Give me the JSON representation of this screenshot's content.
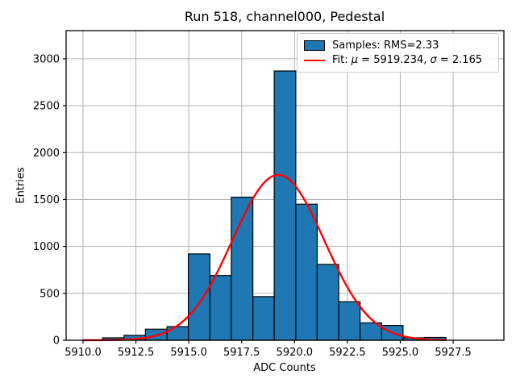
{
  "figure": {
    "title": "Run 518, channel000, Pedestal",
    "xlabel": "ADC Counts",
    "ylabel": "Entries"
  },
  "legend": {
    "samples_label": "Samples: RMS=2.33",
    "fit_prefix": "Fit: ",
    "mu_symbol": "μ",
    "mu_value_text": " = 5919.234, ",
    "sigma_symbol": "σ",
    "sigma_value_text": " = 2.165"
  },
  "chart_data": {
    "type": "bar",
    "subtype": "histogram-with-gaussian-fit",
    "title": "Run 518, channel000, Pedestal",
    "xlabel": "ADC Counts",
    "ylabel": "Entries",
    "xlim": [
      5909.2,
      5929.9
    ],
    "ylim": [
      0,
      3300
    ],
    "grid": true,
    "legend_position": "upper-right",
    "xticks": [
      {
        "value": 5910.0,
        "label": "5910.0"
      },
      {
        "value": 5912.5,
        "label": "5912.5"
      },
      {
        "value": 5915.0,
        "label": "5915.0"
      },
      {
        "value": 5917.5,
        "label": "5917.5"
      },
      {
        "value": 5920.0,
        "label": "5920.0"
      },
      {
        "value": 5922.5,
        "label": "5922.5"
      },
      {
        "value": 5925.0,
        "label": "5925.0"
      },
      {
        "value": 5927.5,
        "label": "5927.5"
      }
    ],
    "yticks": [
      {
        "value": 0,
        "label": "0"
      },
      {
        "value": 500,
        "label": "500"
      },
      {
        "value": 1000,
        "label": "1000"
      },
      {
        "value": 1500,
        "label": "1500"
      },
      {
        "value": 2000,
        "label": "2000"
      },
      {
        "value": 2500,
        "label": "2500"
      },
      {
        "value": 3000,
        "label": "3000"
      }
    ],
    "histogram": {
      "series_name": "Samples: RMS=2.33",
      "rms": 2.33,
      "bin_edges": [
        5910.92,
        5911.94,
        5912.95,
        5913.97,
        5914.98,
        5916.0,
        5917.01,
        5918.03,
        5919.04,
        5920.06,
        5921.07,
        5922.09,
        5923.1,
        5924.12,
        5925.13,
        5926.15,
        5927.16
      ],
      "counts": [
        26,
        52,
        118,
        145,
        920,
        690,
        1525,
        465,
        2870,
        1450,
        808,
        410,
        185,
        158,
        26,
        30
      ]
    },
    "fit": {
      "series_name": "Fit: μ = 5919.234, σ = 2.165",
      "mu": 5919.234,
      "sigma": 2.165,
      "amplitude": 1762,
      "x_start": 5910.0,
      "x_end": 5927.16
    },
    "colors": {
      "bar_fill": "#1f77b4",
      "bar_edge": "#000000",
      "fit_line": "#ff0000",
      "grid": "#b0b0b0",
      "spine": "#000000",
      "tick_text": "#000000"
    }
  }
}
